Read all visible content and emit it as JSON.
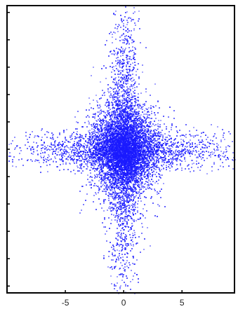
{
  "chart_data": {
    "type": "scatter",
    "title": "",
    "xlabel": "",
    "ylabel": "",
    "xlim": [
      -10,
      9.5
    ],
    "ylim": [
      -10.5,
      10.5
    ],
    "x_ticks": [
      -5,
      0,
      5
    ],
    "x_tick_labels": [
      "-5",
      "0",
      "5"
    ],
    "y_ticks": [
      -10,
      -8,
      -6,
      -4,
      -2,
      0,
      2,
      4,
      6,
      8,
      10
    ],
    "y_tick_labels_shown": false,
    "grid": false,
    "legend": "none",
    "marker_color": "#1a1aff",
    "series": [
      {
        "distribution": {
          "center": [
            0,
            0
          ],
          "core_std": [
            1.4,
            1.6
          ],
          "arm_std_along_x": 4.5,
          "arm_std_along_y": 5.0,
          "arm_thickness_std": 0.7
        },
        "approx_point_count": 9000
      }
    ]
  }
}
